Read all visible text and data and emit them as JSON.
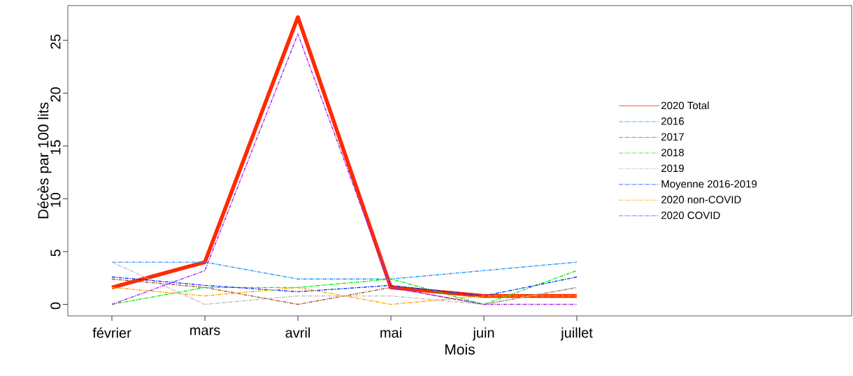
{
  "chart_data": {
    "type": "line",
    "xlabel": "Mois",
    "ylabel": "Décès par 100 lits",
    "categories": [
      "février",
      "mars",
      "avril",
      "mai",
      "juin",
      "juillet"
    ],
    "ylim": [
      -1.09,
      28.29
    ],
    "yticks": [
      0,
      5,
      10,
      15,
      20,
      25
    ],
    "legend": "right",
    "grid": false,
    "series": [
      {
        "name": "2016",
        "color": "#1e90ff",
        "line_style": "dashed",
        "values": [
          4,
          4,
          2.4,
          2.4,
          3.2,
          4
        ]
      },
      {
        "name": "2017",
        "color": "#a0522d",
        "line_style": "dashed",
        "values": [
          2.4,
          1.6,
          0,
          1.6,
          0,
          1.6
        ]
      },
      {
        "name": "2018",
        "color": "#00ee00",
        "line_style": "dashed",
        "values": [
          0,
          1.6,
          1.6,
          2.4,
          0,
          3.2
        ]
      },
      {
        "name": "2019",
        "color": "#bebebe",
        "line_style": "dashed",
        "values": [
          4,
          0,
          0.8,
          0.8,
          0,
          1.6
        ]
      },
      {
        "name": "Moyenne 2016-2019",
        "color": "#0033ff",
        "line_style": "dashed",
        "values": [
          2.6,
          1.8,
          1.2,
          1.8,
          0.8,
          2.6
        ]
      },
      {
        "name": "2020 non-COVID",
        "color": "#ffa500",
        "line_style": "dashed",
        "values": [
          1.6,
          0.8,
          1.6,
          0,
          0.8,
          0.8
        ]
      },
      {
        "name": "2020 COVID",
        "color": "#a020f0",
        "line_style": "dashed",
        "values": [
          0,
          3.2,
          25.6,
          1.6,
          0,
          0
        ]
      },
      {
        "name": "2020 Total",
        "color": "#ff2a00",
        "line_style": "solid",
        "values": [
          1.6,
          4,
          27.2,
          1.6,
          0.8,
          0.8
        ]
      }
    ]
  }
}
